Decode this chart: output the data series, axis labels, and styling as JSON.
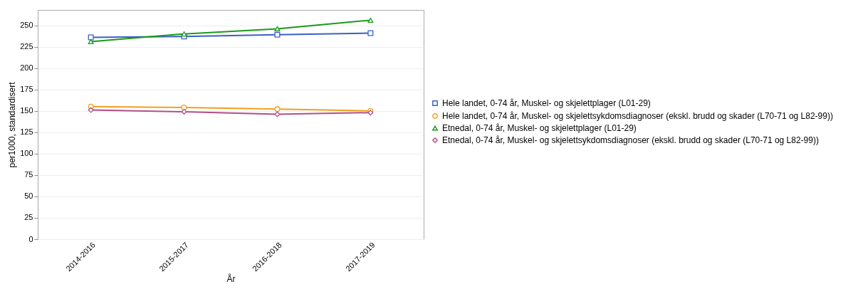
{
  "chart_data": {
    "type": "line",
    "xlabel": "År",
    "ylabel": "per1000, standardisert",
    "categories": [
      "2014-2016",
      "2015-2017",
      "2016-2018",
      "2017-2019"
    ],
    "ylim": [
      0,
      268
    ],
    "yticks": [
      0,
      25,
      50,
      75,
      100,
      125,
      150,
      175,
      200,
      225,
      250
    ],
    "grid": "y",
    "legend": "right",
    "series": [
      {
        "name": "Hele landet, 0-74 år, Muskel- og skjelettplager (L01-29)",
        "color": "#3a5fc8",
        "marker": "square",
        "values": [
          236,
          237,
          239,
          241
        ]
      },
      {
        "name": "Hele landet, 0-74 år, Muskel- og skjelettsykdomsdiagnoser (ekskl. brudd og skader (L70-71 og L82-99))",
        "color": "#f0a020",
        "marker": "circle",
        "values": [
          155,
          154,
          152,
          150
        ]
      },
      {
        "name": "Etnedal, 0-74 år, Muskel- og skjelettplager (L01-29)",
        "color": "#1a9a1a",
        "marker": "triangle",
        "values": [
          231,
          240,
          246,
          256
        ]
      },
      {
        "name": "Etnedal, 0-74 år, Muskel- og skjelettsykdomsdiagnoser (ekskl. brudd og skader (L70-71 og L82-99))",
        "color": "#b0508a",
        "marker": "diamond",
        "values": [
          151,
          149,
          146,
          148
        ]
      }
    ]
  }
}
